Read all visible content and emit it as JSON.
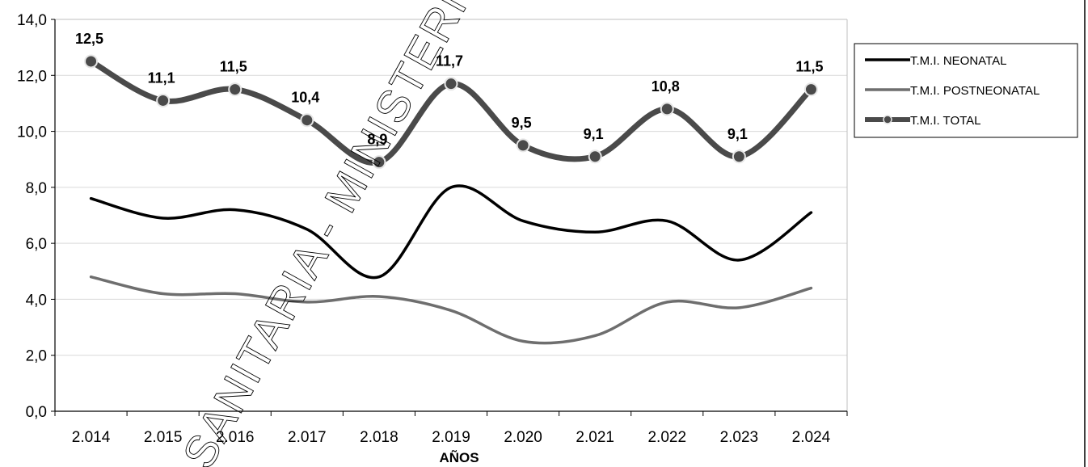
{
  "chart_data": {
    "type": "line",
    "title": "",
    "xlabel": "AÑOS",
    "ylabel": "",
    "ylim": [
      0,
      14
    ],
    "y_ticks": [
      "0,0",
      "2,0",
      "4,0",
      "6,0",
      "8,0",
      "10,0",
      "12,0",
      "14,0"
    ],
    "categories": [
      "2.014",
      "2.015",
      "2.016",
      "2.017",
      "2.018",
      "2.019",
      "2.020",
      "2.021",
      "2.022",
      "2.023",
      "2.024"
    ],
    "grid": true,
    "legend_position": "right",
    "watermark": "SANITARIA - MINISTERIO DE SA",
    "series": [
      {
        "name": "T.M.I. NEONATAL",
        "values": [
          7.6,
          6.9,
          7.2,
          6.5,
          4.8,
          8.0,
          6.8,
          6.4,
          6.8,
          5.4,
          7.1
        ],
        "color": "#000000",
        "markers": false
      },
      {
        "name": "T.M.I. POSTNEONATAL",
        "values": [
          4.8,
          4.2,
          4.2,
          3.9,
          4.1,
          3.6,
          2.5,
          2.7,
          3.9,
          3.7,
          4.4
        ],
        "color": "#6e6e6e",
        "markers": false
      },
      {
        "name": "T.M.I. TOTAL",
        "values": [
          12.5,
          11.1,
          11.5,
          10.4,
          8.9,
          11.7,
          9.5,
          9.1,
          10.8,
          9.1,
          11.5
        ],
        "labels": [
          "12,5",
          "11,1",
          "11,5",
          "10,4",
          "8,9",
          "11,7",
          "9,5",
          "9,1",
          "10,8",
          "9,1",
          "11,5"
        ],
        "color": "#4a4a4a",
        "markers": true
      }
    ]
  }
}
